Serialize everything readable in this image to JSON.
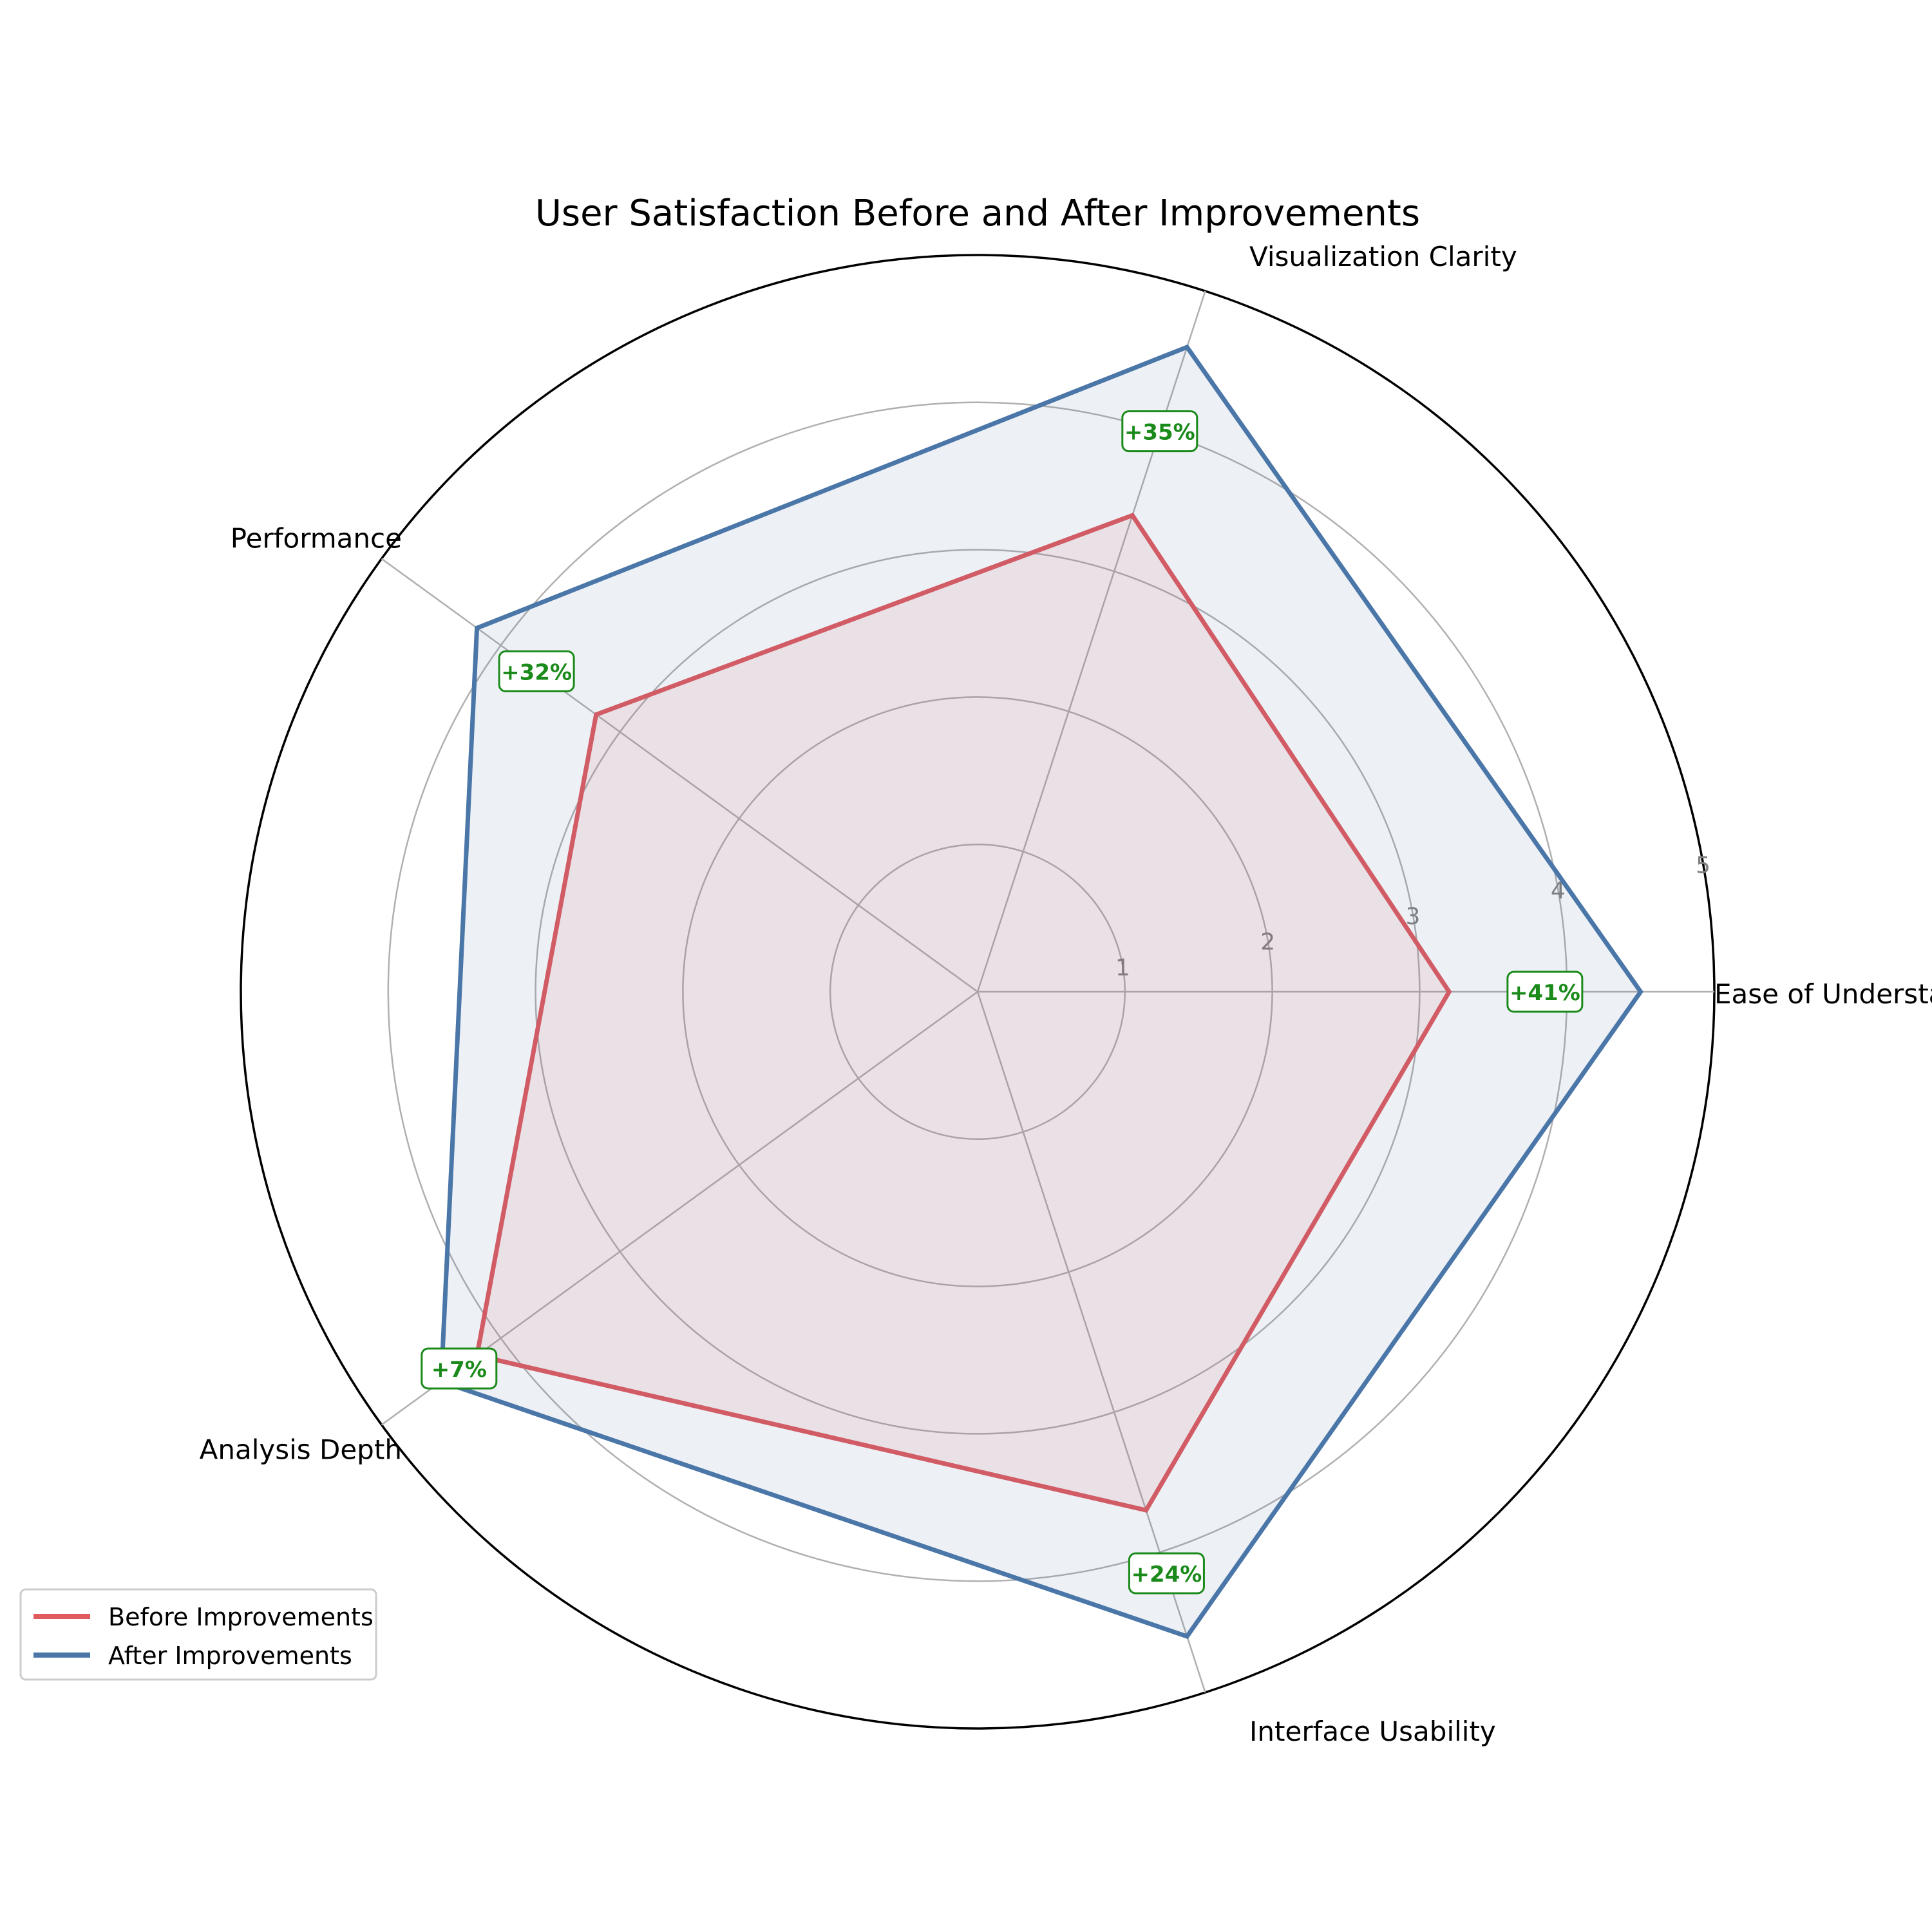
{
  "chart_data": {
    "type": "radar",
    "title": "User Satisfaction Before and After Improvements",
    "categories": [
      "Ease of Understanding",
      "Visualization Clarity",
      "Performance",
      "Analysis Depth",
      "Interface Usability"
    ],
    "rlim": [
      0,
      5
    ],
    "radial_ticks": [
      "1",
      "2",
      "3",
      "4",
      "5"
    ],
    "series": [
      {
        "name": "Before Improvements",
        "color": "#e05a5e",
        "values": [
          3.2,
          3.4,
          3.2,
          4.2,
          3.7
        ]
      },
      {
        "name": "After Improvements",
        "color": "#4a76a8",
        "values": [
          4.5,
          4.6,
          4.2,
          4.5,
          4.6
        ]
      }
    ],
    "annotations": [
      "+41%",
      "+35%",
      "+32%",
      "+7%",
      "+24%"
    ],
    "annotation_color": "#1a8a1a",
    "grid": true,
    "legend_position": "bottom-left"
  }
}
